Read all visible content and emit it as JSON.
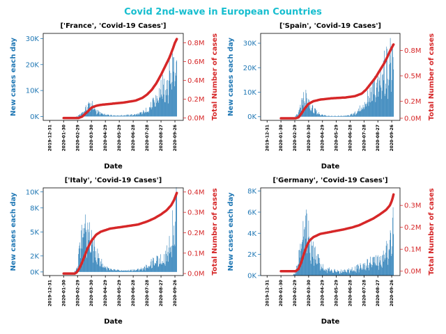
{
  "suptitle": "Covid 2nd-wave in European Countries",
  "colors": {
    "suptitle": "#17becf",
    "bars": "#1f77b4",
    "cumulative_line": "#d62728",
    "left_axis": "#1f77b4",
    "right_axis": "#d62728",
    "axes": "#000000"
  },
  "chart_data": [
    {
      "type": "bar",
      "title": "['France', 'Covid-19 Cases']",
      "xlabel": "Date",
      "ylabel": "New cases each day",
      "y2label": "Total Number of cases",
      "x_ticks": [
        "2019-12-31",
        "2020-01-30",
        "2020-02-29",
        "2020-03-30",
        "2020-04-29",
        "2020-05-29",
        "2020-06-28",
        "2020-07-28",
        "2020-08-27",
        "2020-09-26"
      ],
      "yticks": [
        "0K",
        "10K",
        "20K",
        "30K"
      ],
      "y2ticks": [
        "0.0M",
        "0.2M",
        "0.4M",
        "0.6M",
        "0.8M"
      ],
      "ylim": [
        -1500,
        32000
      ],
      "y2lim": [
        -25000,
        900000
      ],
      "grid": false,
      "daily_new_cases_profile": [
        [
          -30,
          0
        ],
        [
          55,
          0
        ],
        [
          62,
          300
        ],
        [
          70,
          1500
        ],
        [
          78,
          3000
        ],
        [
          84,
          4500
        ],
        [
          90,
          4800
        ],
        [
          95,
          3500
        ],
        [
          102,
          2000
        ],
        [
          110,
          1200
        ],
        [
          120,
          700
        ],
        [
          135,
          500
        ],
        [
          150,
          400
        ],
        [
          165,
          500
        ],
        [
          180,
          700
        ],
        [
          192,
          1000
        ],
        [
          205,
          2000
        ],
        [
          218,
          4000
        ],
        [
          230,
          7000
        ],
        [
          240,
          10000
        ],
        [
          250,
          13000
        ],
        [
          258,
          16000
        ],
        [
          265,
          20000
        ],
        [
          270,
          24000
        ],
        [
          274,
          27000
        ]
      ],
      "cumulative_total_profile": [
        [
          30,
          0
        ],
        [
          62,
          0
        ],
        [
          70,
          15000
        ],
        [
          80,
          60000
        ],
        [
          90,
          110000
        ],
        [
          100,
          130000
        ],
        [
          110,
          140000
        ],
        [
          130,
          150000
        ],
        [
          160,
          165000
        ],
        [
          185,
          185000
        ],
        [
          200,
          215000
        ],
        [
          210,
          250000
        ],
        [
          220,
          300000
        ],
        [
          230,
          370000
        ],
        [
          240,
          460000
        ],
        [
          250,
          560000
        ],
        [
          258,
          640000
        ],
        [
          265,
          730000
        ],
        [
          270,
          800000
        ],
        [
          274,
          840000
        ]
      ]
    },
    {
      "type": "bar",
      "title": "['Spain', 'Covid-19 Cases']",
      "xlabel": "Date",
      "ylabel": "New cases each day",
      "y2label": "Total Number of cases",
      "x_ticks": [
        "2019-12-31",
        "2020-01-30",
        "2020-02-29",
        "2020-03-30",
        "2020-04-29",
        "2020-05-29",
        "2020-06-28",
        "2020-07-28",
        "2020-08-27",
        "2020-09-26"
      ],
      "yticks": [
        "0K",
        "10K",
        "20K",
        "30K"
      ],
      "y2ticks": [
        "0.0M",
        "0.2M",
        "0.5M",
        "0.8M"
      ],
      "ylim": [
        -1500,
        34000
      ],
      "y2lim": [
        -25000,
        1000000
      ],
      "grid": false,
      "daily_new_cases_profile": [
        [
          -30,
          0
        ],
        [
          60,
          0
        ],
        [
          68,
          1500
        ],
        [
          74,
          5000
        ],
        [
          80,
          8000
        ],
        [
          86,
          7500
        ],
        [
          92,
          5000
        ],
        [
          100,
          3000
        ],
        [
          108,
          1800
        ],
        [
          120,
          700
        ],
        [
          140,
          300
        ],
        [
          160,
          300
        ],
        [
          180,
          600
        ],
        [
          195,
          2000
        ],
        [
          210,
          5000
        ],
        [
          220,
          8000
        ],
        [
          230,
          11000
        ],
        [
          240,
          14000
        ],
        [
          248,
          17000
        ],
        [
          256,
          20000
        ],
        [
          262,
          22000
        ],
        [
          268,
          24000
        ],
        [
          274,
          18000
        ]
      ],
      "cumulative_total_profile": [
        [
          30,
          0
        ],
        [
          62,
          0
        ],
        [
          68,
          10000
        ],
        [
          75,
          60000
        ],
        [
          82,
          120000
        ],
        [
          90,
          170000
        ],
        [
          100,
          200000
        ],
        [
          115,
          220000
        ],
        [
          140,
          235000
        ],
        [
          170,
          245000
        ],
        [
          190,
          260000
        ],
        [
          205,
          290000
        ],
        [
          215,
          340000
        ],
        [
          225,
          410000
        ],
        [
          235,
          480000
        ],
        [
          245,
          570000
        ],
        [
          255,
          660000
        ],
        [
          262,
          740000
        ],
        [
          268,
          810000
        ],
        [
          274,
          870000
        ]
      ]
    },
    {
      "type": "bar",
      "title": "['Italy', 'Covid-19 Cases']",
      "xlabel": "Date",
      "ylabel": "New cases each day",
      "y2label": "Total Number of cases",
      "x_ticks": [
        "2019-12-31",
        "2020-01-30",
        "2020-02-29",
        "2020-03-30",
        "2020-04-29",
        "2020-05-29",
        "2020-06-28",
        "2020-07-28",
        "2020-08-27",
        "2020-09-26"
      ],
      "yticks": [
        "0K",
        "2K",
        "5K",
        "8K",
        "10K"
      ],
      "y2ticks": [
        "0.0M",
        "0.1M",
        "0.2M",
        "0.3M",
        "0.4M"
      ],
      "ylim": [
        -450,
        10500
      ],
      "y2lim": [
        -10000,
        420000
      ],
      "grid": false,
      "daily_new_cases_profile": [
        [
          -30,
          0
        ],
        [
          52,
          0
        ],
        [
          56,
          150
        ],
        [
          60,
          800
        ],
        [
          64,
          2500
        ],
        [
          70,
          5000
        ],
        [
          75,
          6000
        ],
        [
          80,
          5200
        ],
        [
          86,
          4500
        ],
        [
          92,
          3500
        ],
        [
          100,
          2500
        ],
        [
          108,
          1500
        ],
        [
          118,
          700
        ],
        [
          130,
          300
        ],
        [
          150,
          200
        ],
        [
          170,
          200
        ],
        [
          190,
          300
        ],
        [
          205,
          500
        ],
        [
          215,
          1000
        ],
        [
          225,
          1300
        ],
        [
          235,
          1500
        ],
        [
          245,
          1700
        ],
        [
          252,
          2300
        ],
        [
          258,
          3500
        ],
        [
          264,
          5000
        ],
        [
          268,
          6500
        ],
        [
          272,
          8000
        ],
        [
          274,
          9500
        ]
      ],
      "cumulative_total_profile": [
        [
          30,
          0
        ],
        [
          54,
          0
        ],
        [
          58,
          5000
        ],
        [
          64,
          25000
        ],
        [
          70,
          55000
        ],
        [
          76,
          90000
        ],
        [
          82,
          125000
        ],
        [
          90,
          160000
        ],
        [
          100,
          190000
        ],
        [
          110,
          205000
        ],
        [
          130,
          220000
        ],
        [
          160,
          230000
        ],
        [
          190,
          240000
        ],
        [
          210,
          255000
        ],
        [
          225,
          270000
        ],
        [
          240,
          290000
        ],
        [
          252,
          310000
        ],
        [
          262,
          335000
        ],
        [
          268,
          360000
        ],
        [
          274,
          395000
        ]
      ]
    },
    {
      "type": "bar",
      "title": "['Germany', 'Covid-19 Cases']",
      "xlabel": "Date",
      "ylabel": "New cases each day",
      "y2label": "Total Number of cases",
      "x_ticks": [
        "2019-12-31",
        "2020-01-30",
        "2020-02-29",
        "2020-03-30",
        "2020-04-29",
        "2020-05-29",
        "2020-06-28",
        "2020-07-28",
        "2020-08-27",
        "2020-09-26"
      ],
      "yticks": [
        "0K",
        "2K",
        "4K",
        "6K",
        "8K"
      ],
      "y2ticks": [
        "0.0M",
        "0.1M",
        "0.2M",
        "0.3M"
      ],
      "ylim": [
        0,
        8300
      ],
      "y2lim": [
        -20000,
        380000
      ],
      "grid": false,
      "daily_new_cases_profile": [
        [
          -30,
          0
        ],
        [
          55,
          0
        ],
        [
          62,
          300
        ],
        [
          68,
          1500
        ],
        [
          74,
          3500
        ],
        [
          78,
          5000
        ],
        [
          82,
          6000
        ],
        [
          86,
          4500
        ],
        [
          92,
          3500
        ],
        [
          100,
          2500
        ],
        [
          110,
          1500
        ],
        [
          120,
          800
        ],
        [
          140,
          500
        ],
        [
          160,
          400
        ],
        [
          180,
          500
        ],
        [
          195,
          700
        ],
        [
          210,
          1000
        ],
        [
          225,
          1300
        ],
        [
          240,
          1500
        ],
        [
          250,
          1700
        ],
        [
          258,
          2200
        ],
        [
          264,
          3000
        ],
        [
          270,
          4000
        ],
        [
          274,
          5500
        ]
      ],
      "cumulative_total_profile": [
        [
          30,
          0
        ],
        [
          62,
          0
        ],
        [
          68,
          10000
        ],
        [
          74,
          40000
        ],
        [
          80,
          80000
        ],
        [
          86,
          115000
        ],
        [
          92,
          140000
        ],
        [
          100,
          155000
        ],
        [
          115,
          170000
        ],
        [
          140,
          180000
        ],
        [
          165,
          190000
        ],
        [
          185,
          200000
        ],
        [
          200,
          210000
        ],
        [
          215,
          225000
        ],
        [
          230,
          240000
        ],
        [
          245,
          260000
        ],
        [
          258,
          280000
        ],
        [
          266,
          300000
        ],
        [
          271,
          325000
        ],
        [
          274,
          350000
        ]
      ]
    }
  ]
}
